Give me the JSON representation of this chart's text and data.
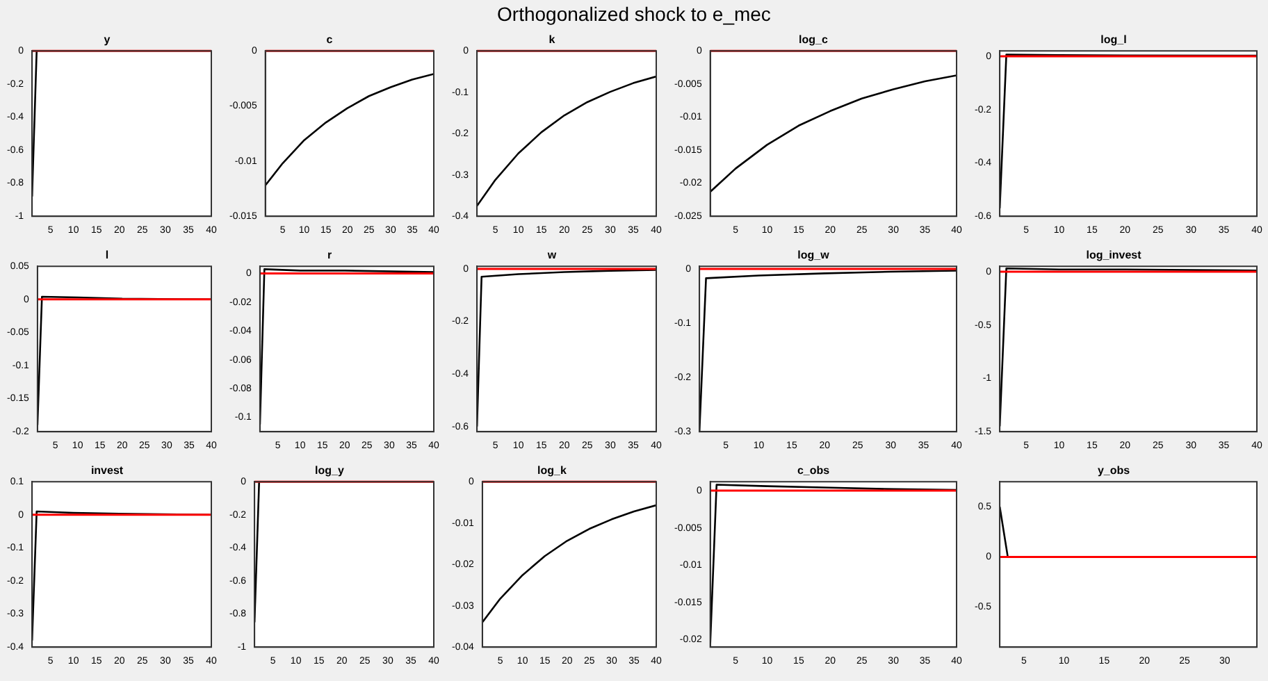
{
  "chart_data": [
    {
      "type": "line",
      "title": "y",
      "annotations": [
        "Orthogonalized shock to e_mec"
      ],
      "x": [
        1,
        2
      ],
      "values": [
        -0.88,
        0
      ],
      "color": "#000000",
      "xlim": [
        1,
        40
      ],
      "xticks": [
        5,
        10,
        15,
        20,
        25,
        30,
        35,
        40
      ],
      "ylim": [
        -1,
        0
      ],
      "yticks": [
        -1,
        -0.8,
        -0.6,
        -0.4,
        -0.2,
        0
      ],
      "ref_lines": [
        {
          "axis": "y",
          "value": 0,
          "color": "#ff0000"
        }
      ]
    },
    {
      "type": "line",
      "title": "c",
      "x": [
        1,
        5,
        10,
        15,
        20,
        25,
        30,
        35,
        40
      ],
      "values": [
        -0.0122,
        -0.0102,
        -0.0081,
        -0.0065,
        -0.0052,
        -0.0041,
        -0.0033,
        -0.0026,
        -0.0021
      ],
      "color": "#000000",
      "xlim": [
        1,
        40
      ],
      "xticks": [
        5,
        10,
        15,
        20,
        25,
        30,
        35,
        40
      ],
      "ylim": [
        -0.015,
        0
      ],
      "yticks": [
        -0.015,
        -0.01,
        -0.005,
        0
      ],
      "ref_lines": [
        {
          "axis": "y",
          "value": 0,
          "color": "#ff0000"
        }
      ]
    },
    {
      "type": "line",
      "title": "k",
      "x": [
        1,
        5,
        10,
        15,
        20,
        25,
        30,
        35,
        40
      ],
      "values": [
        -0.375,
        -0.312,
        -0.248,
        -0.197,
        -0.156,
        -0.124,
        -0.099,
        -0.078,
        -0.062
      ],
      "color": "#000000",
      "xlim": [
        1,
        40
      ],
      "xticks": [
        5,
        10,
        15,
        20,
        25,
        30,
        35,
        40
      ],
      "ylim": [
        -0.4,
        0
      ],
      "yticks": [
        -0.4,
        -0.3,
        -0.2,
        -0.1,
        0
      ],
      "ref_lines": [
        {
          "axis": "y",
          "value": 0,
          "color": "#ff0000"
        }
      ]
    },
    {
      "type": "line",
      "title": "log_c",
      "x": [
        1,
        5,
        10,
        15,
        20,
        25,
        30,
        35,
        40
      ],
      "values": [
        -0.0213,
        -0.0178,
        -0.0142,
        -0.0113,
        -0.0091,
        -0.0072,
        -0.0058,
        -0.0046,
        -0.0037
      ],
      "color": "#000000",
      "xlim": [
        1,
        40
      ],
      "xticks": [
        5,
        10,
        15,
        20,
        25,
        30,
        35,
        40
      ],
      "ylim": [
        -0.025,
        0
      ],
      "yticks": [
        -0.025,
        -0.02,
        -0.015,
        -0.01,
        -0.005,
        0
      ],
      "ref_lines": [
        {
          "axis": "y",
          "value": 0,
          "color": "#ff0000"
        }
      ]
    },
    {
      "type": "line",
      "title": "log_l",
      "x": [
        1,
        2,
        10,
        20,
        40
      ],
      "values": [
        -0.57,
        0.006,
        0.004,
        0.003,
        0.002
      ],
      "color": "#000000",
      "xlim": [
        1,
        40
      ],
      "xticks": [
        5,
        10,
        15,
        20,
        25,
        30,
        35,
        40
      ],
      "ylim": [
        -0.6,
        0.02
      ],
      "yticks": [
        -0.6,
        -0.4,
        -0.2,
        0
      ],
      "ref_lines": [
        {
          "axis": "y",
          "value": 0,
          "color": "#ff0000"
        }
      ]
    },
    {
      "type": "line",
      "title": "l",
      "x": [
        1,
        2,
        10,
        20,
        40
      ],
      "values": [
        -0.19,
        0.004,
        0.003,
        0.001,
        0
      ],
      "color": "#000000",
      "xlim": [
        1,
        40
      ],
      "xticks": [
        5,
        10,
        15,
        20,
        25,
        30,
        35,
        40
      ],
      "ylim": [
        -0.2,
        0.05
      ],
      "yticks": [
        -0.2,
        -0.15,
        -0.1,
        -0.05,
        0,
        0.05
      ],
      "ref_lines": [
        {
          "axis": "y",
          "value": 0,
          "color": "#ff0000"
        }
      ]
    },
    {
      "type": "line",
      "title": "r",
      "x": [
        1,
        2,
        10,
        20,
        40
      ],
      "values": [
        -0.105,
        0.003,
        0.002,
        0.002,
        0.001
      ],
      "color": "#000000",
      "xlim": [
        1,
        40
      ],
      "xticks": [
        5,
        10,
        15,
        20,
        25,
        30,
        35,
        40
      ],
      "ylim": [
        -0.11,
        0.005
      ],
      "yticks": [
        -0.1,
        -0.08,
        -0.06,
        -0.04,
        -0.02,
        0
      ],
      "ref_lines": [
        {
          "axis": "y",
          "value": 0,
          "color": "#ff0000"
        }
      ]
    },
    {
      "type": "line",
      "title": "w",
      "x": [
        1,
        2,
        10,
        20,
        30,
        40
      ],
      "values": [
        -0.6,
        -0.03,
        -0.02,
        -0.012,
        -0.007,
        -0.004
      ],
      "color": "#000000",
      "xlim": [
        1,
        40
      ],
      "xticks": [
        5,
        10,
        15,
        20,
        25,
        30,
        35,
        40
      ],
      "ylim": [
        -0.62,
        0.01
      ],
      "yticks": [
        -0.6,
        -0.4,
        -0.2,
        0
      ],
      "ref_lines": [
        {
          "axis": "y",
          "value": 0,
          "color": "#ff0000"
        }
      ]
    },
    {
      "type": "line",
      "title": "log_w",
      "x": [
        1,
        2,
        10,
        20,
        30,
        40
      ],
      "values": [
        -0.3,
        -0.017,
        -0.012,
        -0.008,
        -0.005,
        -0.003
      ],
      "color": "#000000",
      "xlim": [
        1,
        40
      ],
      "xticks": [
        5,
        10,
        15,
        20,
        25,
        30,
        35,
        40
      ],
      "ylim": [
        -0.3,
        0.005
      ],
      "yticks": [
        -0.3,
        -0.2,
        -0.1,
        0
      ],
      "ref_lines": [
        {
          "axis": "y",
          "value": 0,
          "color": "#ff0000"
        }
      ]
    },
    {
      "type": "line",
      "title": "log_invest",
      "x": [
        1,
        2,
        10,
        20,
        40
      ],
      "values": [
        -1.45,
        0.03,
        0.02,
        0.02,
        0.01
      ],
      "color": "#000000",
      "xlim": [
        1,
        40
      ],
      "xticks": [
        5,
        10,
        15,
        20,
        25,
        30,
        35,
        40
      ],
      "ylim": [
        -1.5,
        0.05
      ],
      "yticks": [
        -1.5,
        -1,
        -0.5,
        0
      ],
      "ref_lines": [
        {
          "axis": "y",
          "value": 0,
          "color": "#ff0000"
        }
      ]
    },
    {
      "type": "line",
      "title": "invest",
      "x": [
        1,
        2,
        10,
        20,
        40
      ],
      "values": [
        -0.38,
        0.01,
        0.006,
        0.003,
        0
      ],
      "color": "#000000",
      "xlim": [
        1,
        40
      ],
      "xticks": [
        5,
        10,
        15,
        20,
        25,
        30,
        35,
        40
      ],
      "ylim": [
        -0.4,
        0.1
      ],
      "yticks": [
        -0.4,
        -0.3,
        -0.2,
        -0.1,
        0,
        0.1
      ],
      "ref_lines": [
        {
          "axis": "y",
          "value": 0,
          "color": "#ff0000"
        }
      ]
    },
    {
      "type": "line",
      "title": "log_y",
      "x": [
        1,
        2
      ],
      "values": [
        -0.85,
        0
      ],
      "color": "#000000",
      "xlim": [
        1,
        40
      ],
      "xticks": [
        5,
        10,
        15,
        20,
        25,
        30,
        35,
        40
      ],
      "ylim": [
        -1,
        0
      ],
      "yticks": [
        -1,
        -0.8,
        -0.6,
        -0.4,
        -0.2,
        0
      ],
      "ref_lines": [
        {
          "axis": "y",
          "value": 0,
          "color": "#ff0000"
        }
      ]
    },
    {
      "type": "line",
      "title": "log_k",
      "x": [
        1,
        5,
        10,
        15,
        20,
        25,
        30,
        35,
        40
      ],
      "values": [
        -0.034,
        -0.0283,
        -0.0226,
        -0.018,
        -0.0143,
        -0.0114,
        -0.0091,
        -0.0072,
        -0.0057
      ],
      "color": "#000000",
      "xlim": [
        1,
        40
      ],
      "xticks": [
        5,
        10,
        15,
        20,
        25,
        30,
        35,
        40
      ],
      "ylim": [
        -0.04,
        0
      ],
      "yticks": [
        -0.04,
        -0.03,
        -0.02,
        -0.01,
        0
      ],
      "ref_lines": [
        {
          "axis": "y",
          "value": 0,
          "color": "#ff0000"
        }
      ]
    },
    {
      "type": "line",
      "title": "c_obs",
      "x": [
        1,
        2,
        10,
        20,
        30,
        40
      ],
      "values": [
        -0.0205,
        0.0008,
        0.0006,
        0.0004,
        0.0002,
        0.0001
      ],
      "color": "#000000",
      "xlim": [
        1,
        40
      ],
      "xticks": [
        5,
        10,
        15,
        20,
        25,
        30,
        35,
        40
      ],
      "ylim": [
        -0.021,
        0.0012
      ],
      "yticks": [
        -0.02,
        -0.015,
        -0.01,
        -0.005,
        0
      ],
      "ref_lines": [
        {
          "axis": "y",
          "value": 0,
          "color": "#ff0000"
        }
      ]
    },
    {
      "type": "line",
      "title": "y_obs",
      "x": [
        2,
        3
      ],
      "values": [
        0.5,
        0
      ],
      "color": "#000000",
      "xlim": [
        2,
        34
      ],
      "xticks": [
        5,
        10,
        15,
        20,
        25,
        30
      ],
      "ylim": [
        -0.9,
        0.75
      ],
      "yticks": [
        -0.5,
        0,
        0.5
      ],
      "ref_lines": [
        {
          "axis": "y",
          "value": 0,
          "color": "#ff0000"
        }
      ]
    }
  ]
}
